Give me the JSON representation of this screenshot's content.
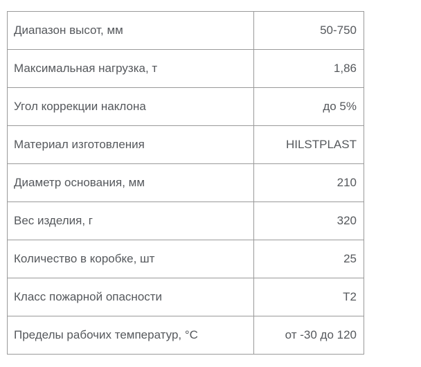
{
  "table": {
    "rows": [
      {
        "label": "Диапазон высот, мм",
        "value": "50-750"
      },
      {
        "label": "Максимальная нагрузка, т",
        "value": "1,86"
      },
      {
        "label": "Угол коррекции наклона",
        "value": "до 5%"
      },
      {
        "label": "Материал изготовления",
        "value": "HILSTPLAST"
      },
      {
        "label": "Диаметр основания, мм",
        "value": "210"
      },
      {
        "label": "Вес изделия, г",
        "value": "320"
      },
      {
        "label": "Количество в коробке, шт",
        "value": "25"
      },
      {
        "label": "Класс пожарной опасности",
        "value": "Т2"
      },
      {
        "label": "Пределы рабочих температур, °С",
        "value": "от -30 до 120"
      }
    ],
    "colors": {
      "border": "#999999",
      "text": "#55585c",
      "background": "#ffffff"
    }
  }
}
